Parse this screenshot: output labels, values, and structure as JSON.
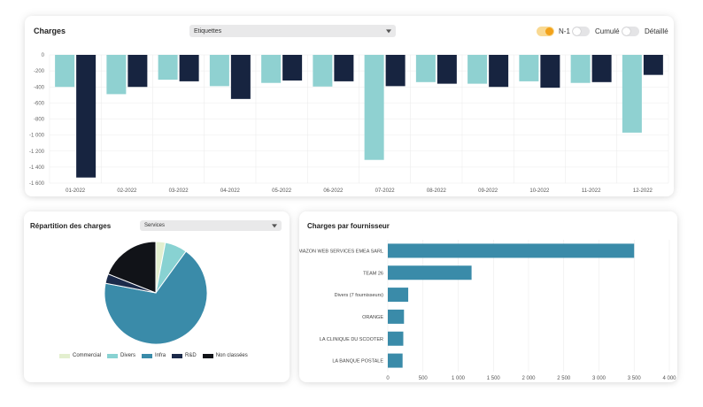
{
  "charges": {
    "title": "Charges",
    "select_value": "Etiquettes",
    "toggles": [
      {
        "label": "N-1",
        "on": true
      },
      {
        "label": "Cumulé",
        "on": false
      },
      {
        "label": "Détaillé",
        "on": false
      }
    ]
  },
  "repartition": {
    "title": "Répartition des charges",
    "select_value": "Services"
  },
  "fournisseur": {
    "title": "Charges par fournisseur"
  },
  "colors": {
    "current": "#8fd1d1",
    "previous": "#172440",
    "commercial": "#e3efcf",
    "divers": "#88d2d2",
    "infra": "#3a8ba9",
    "rnd": "#1b2a4a",
    "non_classees": "#111318",
    "supplier_bar": "#3a8ba9"
  },
  "chart_data": [
    {
      "type": "bar",
      "title": "Charges",
      "categories": [
        "01-2022",
        "02-2022",
        "03-2022",
        "04-2022",
        "05-2022",
        "06-2022",
        "07-2022",
        "08-2022",
        "09-2022",
        "10-2022",
        "11-2022",
        "12-2022"
      ],
      "series": [
        {
          "values": [
            -400,
            -490,
            -310,
            -390,
            -350,
            -395,
            -1310,
            -340,
            -360,
            -330,
            -350,
            -970
          ]
        },
        {
          "values": [
            -1530,
            -400,
            -330,
            -550,
            -320,
            -330,
            -390,
            -360,
            -400,
            -410,
            -340,
            -250
          ]
        }
      ],
      "ylim": [
        -1600,
        0
      ],
      "yticks": [
        0,
        -200,
        -400,
        -600,
        -800,
        -1000,
        -1200,
        -1400,
        -1600
      ],
      "grid": true
    },
    {
      "type": "pie",
      "title": "Répartition des charges",
      "labels": [
        "Commercial",
        "Divers",
        "Infra",
        "R&D",
        "Non classées"
      ],
      "values": [
        3,
        7,
        68,
        3,
        19
      ],
      "legend": "bottom"
    },
    {
      "type": "bar",
      "orientation": "horizontal",
      "title": "Charges par fournisseur",
      "categories": [
        "AMAZON WEB SERVICES EMEA SARL",
        "TEAM 26",
        "Divers (7 fournisseurs)",
        "ORANGE",
        "LA CLINIQUE DU SCOOTER",
        "LA BANQUE POSTALE"
      ],
      "values": [
        3500,
        1190,
        290,
        230,
        220,
        210
      ],
      "xlim": [
        0,
        4000
      ],
      "xticks": [
        "0",
        "500",
        "1 000",
        "1 500",
        "2 000",
        "2 500",
        "3 000",
        "3 500",
        "4 000"
      ],
      "grid": true
    }
  ]
}
